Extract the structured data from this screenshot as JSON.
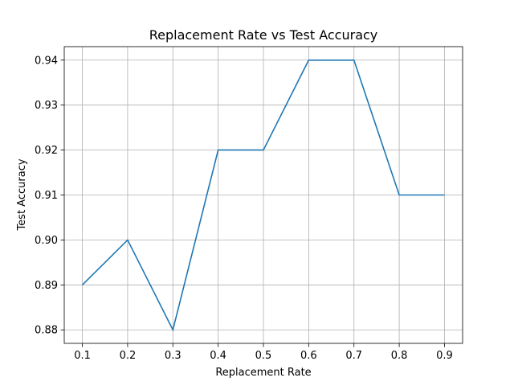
{
  "chart_data": {
    "type": "line",
    "title": "Replacement Rate vs Test Accuracy",
    "xlabel": "Replacement Rate",
    "ylabel": "Test Accuracy",
    "x": [
      0.1,
      0.2,
      0.3,
      0.4,
      0.5,
      0.6,
      0.7,
      0.8,
      0.9
    ],
    "series": [
      {
        "values": [
          0.89,
          0.9,
          0.88,
          0.92,
          0.92,
          0.94,
          0.94,
          0.91,
          0.91
        ]
      }
    ],
    "xticks": [
      "0.1",
      "0.2",
      "0.3",
      "0.4",
      "0.5",
      "0.6",
      "0.7",
      "0.8",
      "0.9"
    ],
    "yticks": [
      "0.88",
      "0.89",
      "0.90",
      "0.91",
      "0.92",
      "0.93",
      "0.94"
    ],
    "xlim": [
      0.06,
      0.94
    ],
    "ylim": [
      0.877,
      0.943
    ],
    "grid": true,
    "colors": {
      "line": "#1f77b4",
      "grid": "#b0b0b0",
      "axes": "#000000"
    }
  }
}
